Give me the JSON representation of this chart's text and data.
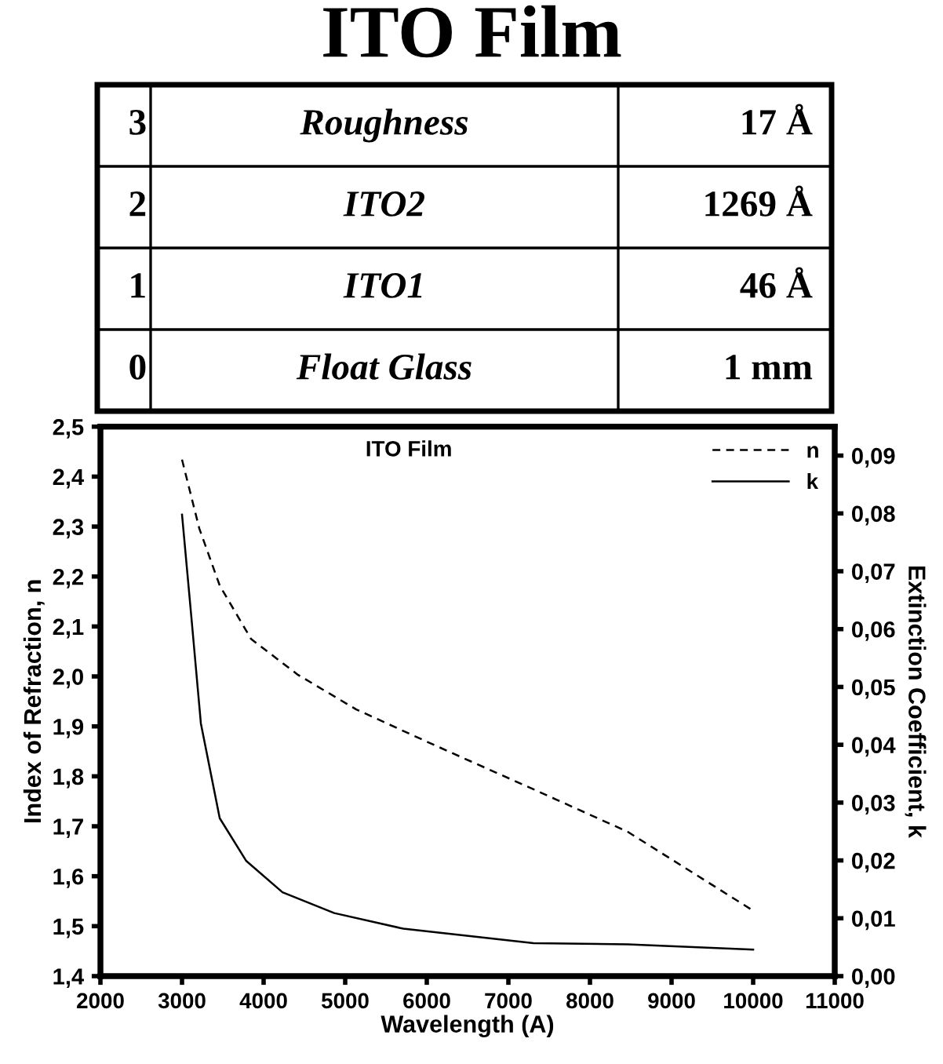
{
  "chart_data": {
    "type": "line",
    "title": "ITO Film",
    "subtitle": "ITO Film",
    "xlabel": "Wavelength (A)",
    "ylabel": "Index of Refraction, n",
    "y2label": "Extinction Coefficient, k",
    "annotations": [
      "3",
      "Roughness",
      "17 Å",
      "2",
      "ITO2",
      "1269 Å",
      "1",
      "ITO1",
      "46 Å",
      "0",
      "Float Glass",
      "1 mm"
    ],
    "series": [
      {
        "name": "n",
        "color": "#000000",
        "line_style": "dashed",
        "x": [
          3000,
          3212,
          3462,
          3846,
          4423,
          5135,
          6019,
          6538,
          7308,
          8462,
          10000
        ],
        "values": [
          2.434,
          2.296,
          2.182,
          2.075,
          2.003,
          1.934,
          1.868,
          1.83,
          1.774,
          1.689,
          1.531
        ]
      },
      {
        "name": "k",
        "color": "#000000",
        "line_style": "solid",
        "axis": "y2",
        "x": [
          3000,
          3115,
          3231,
          3462,
          3788,
          4231,
          4865,
          5712,
          7308,
          8462,
          10000
        ],
        "values": [
          0.0798,
          0.062,
          0.0437,
          0.0273,
          0.0199,
          0.0145,
          0.0109,
          0.0082,
          0.0057,
          0.0055,
          0.0046
        ]
      }
    ],
    "xlim": [
      2000,
      11000
    ],
    "xticks": [
      2000,
      3000,
      4000,
      5000,
      6000,
      7000,
      8000,
      9000,
      10000,
      11000
    ],
    "ylim": [
      1.4,
      2.5
    ],
    "yticks": [
      {
        "value": 1.4,
        "label": "1,4"
      },
      {
        "value": 1.5,
        "label": "1,5"
      },
      {
        "value": 1.6,
        "label": "1,6"
      },
      {
        "value": 1.7,
        "label": "1,7"
      },
      {
        "value": 1.8,
        "label": "1,8"
      },
      {
        "value": 1.9,
        "label": "1,9"
      },
      {
        "value": 2.0,
        "label": "2,0"
      },
      {
        "value": 2.1,
        "label": "2,1"
      },
      {
        "value": 2.2,
        "label": "2,2"
      },
      {
        "value": 2.3,
        "label": "2,3"
      },
      {
        "value": 2.4,
        "label": "2,4"
      },
      {
        "value": 2.5,
        "label": "2,5"
      }
    ],
    "y2lim": [
      0,
      0.095
    ],
    "y2ticks": [
      {
        "value": 0,
        "label": "0,00"
      },
      {
        "value": 0.01,
        "label": "0,01"
      },
      {
        "value": 0.02,
        "label": "0,02"
      },
      {
        "value": 0.03,
        "label": "0,03"
      },
      {
        "value": 0.04,
        "label": "0,04"
      },
      {
        "value": 0.05,
        "label": "0,05"
      },
      {
        "value": 0.06,
        "label": "0,06"
      },
      {
        "value": 0.07,
        "label": "0,07"
      },
      {
        "value": 0.08,
        "label": "0,08"
      },
      {
        "value": 0.09,
        "label": "0,09"
      }
    ],
    "legend": "top right",
    "grid": false
  }
}
